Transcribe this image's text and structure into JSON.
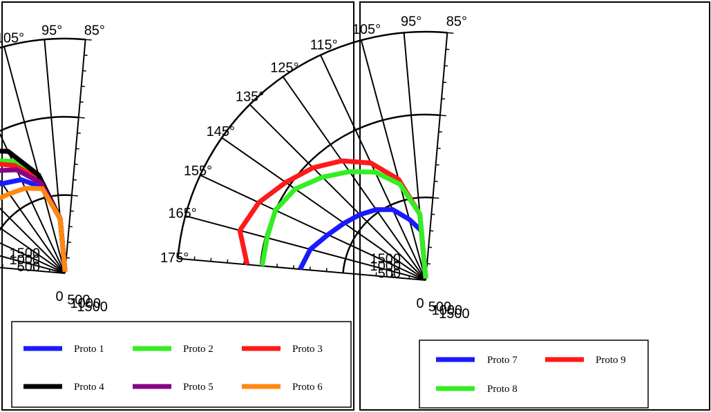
{
  "chart_data": [
    {
      "type": "polar-line",
      "theta_range_deg": [
        85,
        175
      ],
      "r_max": 1500,
      "angle_tick_labels": [
        "85°",
        "95°",
        "105°",
        "115°",
        "125°",
        "135°",
        "145°",
        "155°",
        "165°",
        "175°"
      ],
      "x_tick_labels": [
        "0",
        "500",
        "1000",
        "1500"
      ],
      "y_tick_labels": [
        "500",
        "1000",
        "1500"
      ],
      "legend_columns": 3,
      "series": [
        {
          "name": "Proto 1",
          "color": "#1a1aff",
          "theta": [
            85,
            95,
            105,
            115,
            125,
            135,
            145,
            155,
            165,
            175
          ],
          "r": [
            10,
            350,
            570,
            660,
            700,
            780,
            880,
            1000,
            1090,
            1150
          ]
        },
        {
          "name": "Proto 2",
          "color": "#33ee22",
          "theta": [
            85,
            95,
            105,
            115,
            125,
            135,
            145,
            155,
            165,
            175
          ],
          "r": [
            10,
            350,
            620,
            790,
            880,
            920,
            1010,
            1080,
            1120,
            1150
          ]
        },
        {
          "name": "Proto 3",
          "color": "#ff1a1a",
          "theta": [
            85,
            95,
            105,
            115,
            125,
            135,
            145,
            155,
            165,
            175
          ],
          "r": [
            10,
            350,
            620,
            760,
            860,
            980,
            1100,
            1250,
            1340,
            1370
          ]
        },
        {
          "name": "Proto 4",
          "color": "#000000",
          "theta": [
            85,
            95,
            105,
            115,
            125,
            135,
            145,
            155,
            165,
            175
          ],
          "r": [
            10,
            350,
            650,
            860,
            960,
            1040,
            1100,
            1150,
            1180,
            1200
          ]
        },
        {
          "name": "Proto 5",
          "color": "#880088",
          "theta": [
            85,
            95,
            105,
            115,
            125,
            135,
            145,
            155,
            165,
            175
          ],
          "r": [
            10,
            350,
            600,
            730,
            800,
            900,
            1020,
            1110,
            1180,
            1210
          ]
        },
        {
          "name": "Proto 6",
          "color": "#ff8811",
          "theta": [
            85,
            95,
            105,
            115,
            125,
            135,
            145,
            155,
            165,
            175
          ],
          "r": [
            10,
            350,
            560,
            600,
            620,
            650,
            740,
            880,
            850,
            740
          ]
        }
      ]
    },
    {
      "type": "polar-line",
      "theta_range_deg": [
        85,
        175
      ],
      "r_max": 1500,
      "angle_tick_labels": [
        "85°",
        "95°",
        "105°",
        "115°",
        "125°",
        "135°",
        "145°",
        "155°",
        "165°",
        "175°"
      ],
      "x_tick_labels": [
        "0",
        "500",
        "1000",
        "1500"
      ],
      "y_tick_labels": [
        "500",
        "1000",
        "1500"
      ],
      "legend_columns": 2,
      "series": [
        {
          "name": "Proto 7",
          "color": "#1a1aff",
          "theta": [
            85,
            95,
            105,
            115,
            125,
            135,
            145,
            155,
            165,
            175
          ],
          "r": [
            10,
            300,
            380,
            470,
            520,
            560,
            600,
            650,
            720,
            760
          ]
        },
        {
          "name": "Proto 9",
          "color": "#ff1a1a",
          "theta": [
            85,
            95,
            105,
            115,
            125,
            135,
            145,
            155,
            165,
            175
          ],
          "r": [
            10,
            400,
            630,
            780,
            880,
            960,
            1030,
            1110,
            1160,
            1080
          ]
        },
        {
          "name": "Proto 8",
          "color": "#33ee22",
          "theta": [
            85,
            95,
            105,
            115,
            125,
            135,
            145,
            155,
            165,
            175
          ],
          "r": [
            10,
            400,
            600,
            720,
            800,
            880,
            960,
            1000,
            990,
            990
          ]
        }
      ]
    }
  ]
}
